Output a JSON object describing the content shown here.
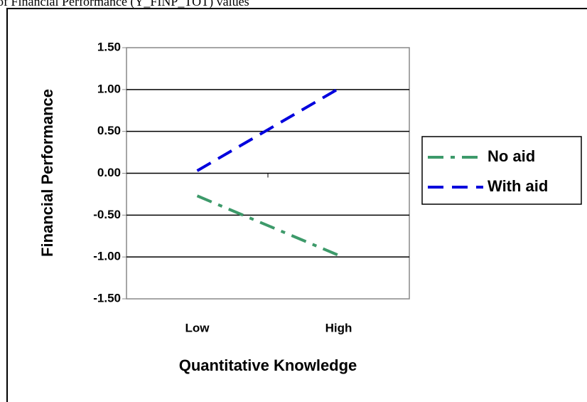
{
  "chart_data": {
    "type": "line",
    "title": "of Financial Performance (Y_FINP_TOT) values",
    "x_label": "Quantitative Knowledge",
    "y_label": "Financial Performance",
    "categories": [
      "Low",
      "High"
    ],
    "series": [
      {
        "name": "No aid",
        "color": "#3d9a6a",
        "line_style": "dashdot",
        "values": [
          -0.27,
          -0.98
        ]
      },
      {
        "name": "With aid",
        "color": "#0000dd",
        "line_style": "dashed",
        "values": [
          0.03,
          1.01
        ]
      }
    ],
    "ylim": [
      -1.5,
      1.5
    ],
    "yticks": [
      {
        "value": -1.5,
        "label": "-1.50"
      },
      {
        "value": -1.0,
        "label": "-1.00"
      },
      {
        "value": -0.5,
        "label": "-0.50"
      },
      {
        "value": 0,
        "label": "0.00"
      },
      {
        "value": 0.5,
        "label": "0.50"
      },
      {
        "value": 1.0,
        "label": "1.00"
      },
      {
        "value": 1.5,
        "label": "1.50"
      }
    ],
    "grid": true,
    "legend": "right"
  }
}
